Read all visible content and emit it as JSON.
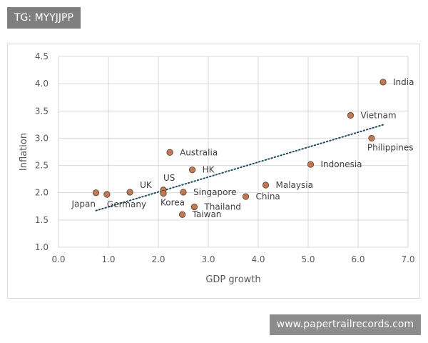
{
  "tag": "TG: MYYJJPP",
  "watermark": "www.papertrailrecords.com",
  "colors": {
    "point_fill": "#c07a53",
    "point_stroke": "#5a3a28",
    "trendline": "#1f4e5f",
    "grid": "#d9d9d9",
    "tick_text": "#595959"
  },
  "chart_data": {
    "type": "scatter",
    "xlabel": "GDP growth",
    "ylabel": "Inflation",
    "xlim": [
      0.0,
      7.0
    ],
    "ylim": [
      1.0,
      4.5
    ],
    "xticks": [
      "0.0",
      "1.0",
      "2.0",
      "3.0",
      "4.0",
      "5.0",
      "6.0",
      "7.0"
    ],
    "yticks": [
      "1.0",
      "1.5",
      "2.0",
      "2.5",
      "3.0",
      "3.5",
      "4.0",
      "4.5"
    ],
    "grid": true,
    "trendline": {
      "style": "dotted",
      "linear": true
    },
    "points": [
      {
        "name": "India",
        "x": 6.5,
        "y": 4.03
      },
      {
        "name": "Vietnam",
        "x": 5.85,
        "y": 3.42
      },
      {
        "name": "Philippines",
        "x": 6.27,
        "y": 3.0
      },
      {
        "name": "Australia",
        "x": 2.23,
        "y": 2.74
      },
      {
        "name": "HK",
        "x": 2.68,
        "y": 2.42
      },
      {
        "name": "Indonesia",
        "x": 5.05,
        "y": 2.52
      },
      {
        "name": "Malaysia",
        "x": 4.15,
        "y": 2.14
      },
      {
        "name": "UK",
        "x": 1.43,
        "y": 2.01
      },
      {
        "name": "US",
        "x": 2.1,
        "y": 2.05
      },
      {
        "name": "Singapore",
        "x": 2.5,
        "y": 2.01
      },
      {
        "name": "Korea",
        "x": 2.1,
        "y": 1.99
      },
      {
        "name": "China",
        "x": 3.75,
        "y": 1.93
      },
      {
        "name": "Japan",
        "x": 0.75,
        "y": 2.0
      },
      {
        "name": "Germany",
        "x": 0.97,
        "y": 1.97
      },
      {
        "name": "Thailand",
        "x": 2.72,
        "y": 1.74
      },
      {
        "name": "Taiwan",
        "x": 2.48,
        "y": 1.6
      }
    ]
  }
}
